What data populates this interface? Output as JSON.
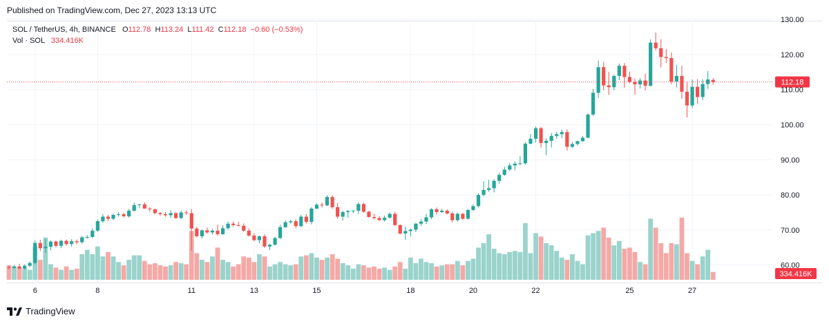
{
  "header": {
    "published": "Published on TradingView.com, Dec 27, 2023 13:13 UTC"
  },
  "legend": {
    "symbol": "SOL / TetherUS, 4h, BINANCE",
    "o_label": "O",
    "o_value": "112.78",
    "h_label": "H",
    "h_value": "113.24",
    "l_label": "L",
    "l_value": "111.42",
    "c_label": "C",
    "c_value": "112.18",
    "change": "−0.60 (−0.53%)",
    "vol_label": "Vol · SOL",
    "vol_value": "334.416K"
  },
  "footer": {
    "brand": "TradingView",
    "logo_icon": "tradingview-logo-icon"
  },
  "colors": {
    "up": "#26a69a",
    "down": "#ef5350",
    "vol_up": "#9ad3cc",
    "vol_down": "#f4a9a7",
    "last_price": "#f23645"
  },
  "chart_data": {
    "type": "candlestick",
    "interval": "4h",
    "price_axis": {
      "ticks": [
        "60.00",
        "70.00",
        "80.00",
        "90.00",
        "100.00",
        "110.00",
        "120.00",
        "130.00"
      ],
      "range": [
        56,
        132
      ]
    },
    "x_axis": {
      "ticks": [
        {
          "label": "6",
          "index": 5
        },
        {
          "label": "8",
          "index": 17
        },
        {
          "label": "11",
          "index": 35
        },
        {
          "label": "13",
          "index": 47
        },
        {
          "label": "15",
          "index": 59
        },
        {
          "label": "18",
          "index": 77
        },
        {
          "label": "20",
          "index": 89
        },
        {
          "label": "22",
          "index": 101
        },
        {
          "label": "25",
          "index": 119
        },
        {
          "label": "27",
          "index": 131
        }
      ]
    },
    "last_price_label": "112.18",
    "last_volume_label": "334.416K",
    "last_price": 112.18,
    "grid": true,
    "candles": [
      [
        59.4,
        59.9,
        58.8,
        59.2,
        13
      ],
      [
        59.2,
        60.0,
        58.9,
        59.6,
        12
      ],
      [
        59.6,
        60.4,
        59.0,
        59.0,
        11
      ],
      [
        59.0,
        60.2,
        58.7,
        59.8,
        10
      ],
      [
        59.8,
        61.0,
        59.4,
        60.6,
        9
      ],
      [
        60.6,
        67.0,
        60.2,
        66.3,
        30
      ],
      [
        66.3,
        67.2,
        64.0,
        64.8,
        18
      ],
      [
        64.8,
        67.5,
        63.5,
        65.2,
        38
      ],
      [
        65.2,
        67.0,
        64.2,
        66.7,
        14
      ],
      [
        66.7,
        67.0,
        65.0,
        65.5,
        11
      ],
      [
        65.5,
        67.2,
        64.8,
        66.9,
        9
      ],
      [
        66.9,
        67.3,
        65.5,
        66.0,
        12
      ],
      [
        66.0,
        67.4,
        65.3,
        66.8,
        9
      ],
      [
        66.8,
        67.3,
        65.9,
        66.5,
        10
      ],
      [
        66.5,
        68.3,
        66.1,
        67.9,
        23
      ],
      [
        67.9,
        68.5,
        67.5,
        68.0,
        27
      ],
      [
        68.0,
        70.5,
        67.7,
        69.8,
        23
      ],
      [
        69.8,
        73.0,
        69.5,
        72.5,
        30
      ],
      [
        72.5,
        74.5,
        72.0,
        73.8,
        21
      ],
      [
        73.8,
        74.3,
        72.5,
        73.2,
        25
      ],
      [
        73.2,
        74.6,
        72.8,
        74.3,
        21
      ],
      [
        74.3,
        75.1,
        73.8,
        74.5,
        16
      ],
      [
        74.5,
        74.9,
        73.6,
        73.9,
        13
      ],
      [
        73.9,
        76.0,
        73.5,
        75.5,
        18
      ],
      [
        75.5,
        77.8,
        75.2,
        77.1,
        22
      ],
      [
        77.1,
        77.4,
        76.2,
        77.3,
        22
      ],
      [
        77.3,
        77.9,
        76.1,
        76.1,
        17
      ],
      [
        76.1,
        76.5,
        75.2,
        75.9,
        14
      ],
      [
        75.9,
        76.1,
        74.5,
        74.8,
        15
      ],
      [
        74.8,
        75.2,
        74.0,
        74.5,
        13
      ],
      [
        74.5,
        75.1,
        73.8,
        74.2,
        12
      ],
      [
        74.2,
        75.6,
        73.4,
        74.8,
        13
      ],
      [
        74.8,
        75.0,
        73.2,
        73.4,
        16
      ],
      [
        73.4,
        75.5,
        73.1,
        75.0,
        15
      ],
      [
        75.0,
        75.6,
        74.3,
        74.8,
        14
      ],
      [
        74.8,
        76.0,
        64.0,
        70.4,
        44
      ],
      [
        70.4,
        70.9,
        67.9,
        68.2,
        24
      ],
      [
        68.2,
        70.1,
        67.6,
        69.9,
        18
      ],
      [
        69.9,
        70.7,
        68.9,
        69.3,
        16
      ],
      [
        69.3,
        70.3,
        68.7,
        69.8,
        21
      ],
      [
        69.8,
        71.5,
        68.3,
        68.8,
        29
      ],
      [
        68.8,
        71.3,
        68.6,
        70.5,
        18
      ],
      [
        70.5,
        72.4,
        70.1,
        71.8,
        16
      ],
      [
        71.8,
        72.4,
        71.0,
        71.4,
        12
      ],
      [
        71.4,
        72.3,
        71.0,
        71.2,
        14
      ],
      [
        71.2,
        71.9,
        69.5,
        69.8,
        21
      ],
      [
        69.8,
        70.5,
        68.1,
        68.4,
        20
      ],
      [
        68.4,
        69.1,
        66.8,
        67.1,
        16
      ],
      [
        67.1,
        68.4,
        66.2,
        68.2,
        23
      ],
      [
        68.2,
        68.8,
        64.9,
        65.3,
        21
      ],
      [
        65.3,
        66.1,
        64.3,
        65.8,
        12
      ],
      [
        65.8,
        68.1,
        65.5,
        67.7,
        14
      ],
      [
        67.7,
        71.5,
        67.5,
        70.8,
        16
      ],
      [
        70.8,
        72.8,
        70.6,
        72.2,
        14
      ],
      [
        72.2,
        72.9,
        71.8,
        72.5,
        13
      ],
      [
        72.5,
        73.0,
        70.5,
        71.1,
        14
      ],
      [
        71.1,
        74.3,
        70.8,
        73.8,
        21
      ],
      [
        73.8,
        74.6,
        71.8,
        72.3,
        22
      ],
      [
        72.3,
        76.5,
        71.6,
        76.1,
        24
      ],
      [
        76.1,
        77.6,
        75.9,
        77.2,
        20
      ],
      [
        77.2,
        77.9,
        76.4,
        77.0,
        18
      ],
      [
        77.0,
        79.9,
        76.8,
        79.4,
        20
      ],
      [
        79.4,
        79.9,
        76.0,
        76.5,
        23
      ],
      [
        76.5,
        77.7,
        73.2,
        73.8,
        19
      ],
      [
        73.8,
        75.5,
        72.7,
        75.1,
        15
      ],
      [
        75.1,
        75.7,
        73.5,
        75.4,
        13
      ],
      [
        75.4,
        75.6,
        74.8,
        75.5,
        10
      ],
      [
        75.5,
        77.9,
        74.6,
        77.4,
        14
      ],
      [
        77.4,
        77.7,
        74.9,
        75.2,
        13
      ],
      [
        75.2,
        75.5,
        73.5,
        73.7,
        11
      ],
      [
        73.7,
        74.6,
        73.0,
        73.4,
        12
      ],
      [
        73.4,
        74.0,
        72.6,
        72.8,
        10
      ],
      [
        72.8,
        74.1,
        72.4,
        73.5,
        11
      ],
      [
        73.5,
        75.0,
        73.3,
        74.6,
        9
      ],
      [
        74.6,
        75.2,
        71.1,
        71.4,
        12
      ],
      [
        71.4,
        71.6,
        68.7,
        69.0,
        16
      ],
      [
        69.0,
        71.0,
        67.2,
        69.7,
        10
      ],
      [
        69.7,
        70.4,
        68.2,
        70.1,
        20
      ],
      [
        70.1,
        72.0,
        69.4,
        71.8,
        15
      ],
      [
        71.8,
        73.1,
        71.2,
        72.4,
        19
      ],
      [
        72.4,
        74.6,
        71.7,
        73.6,
        16
      ],
      [
        73.6,
        76.2,
        73.1,
        75.9,
        15
      ],
      [
        75.9,
        76.4,
        74.4,
        75.1,
        12
      ],
      [
        75.1,
        76.0,
        74.9,
        75.5,
        13
      ],
      [
        75.5,
        75.9,
        74.4,
        74.7,
        14
      ],
      [
        74.7,
        75.3,
        72.2,
        72.8,
        14
      ],
      [
        72.8,
        75.0,
        72.4,
        74.6,
        17
      ],
      [
        74.6,
        74.9,
        72.9,
        73.2,
        13
      ],
      [
        73.2,
        76.0,
        73.0,
        75.7,
        17
      ],
      [
        75.7,
        77.3,
        75.4,
        76.8,
        19
      ],
      [
        76.8,
        80.5,
        76.4,
        80.0,
        29
      ],
      [
        80.0,
        83.8,
        79.6,
        81.4,
        33
      ],
      [
        81.4,
        84.3,
        80.9,
        81.9,
        41
      ],
      [
        81.9,
        84.5,
        80.7,
        84.0,
        28
      ],
      [
        84.0,
        86.3,
        83.2,
        85.7,
        24
      ],
      [
        85.7,
        88.0,
        85.4,
        87.2,
        23
      ],
      [
        87.2,
        89.1,
        86.8,
        88.4,
        25
      ],
      [
        88.4,
        89.5,
        87.0,
        88.9,
        26
      ],
      [
        88.9,
        91.0,
        88.4,
        89.0,
        25
      ],
      [
        89.0,
        95.0,
        88.6,
        94.6,
        51
      ],
      [
        94.6,
        97.3,
        94.4,
        96.0,
        24
      ],
      [
        96.0,
        99.5,
        94.9,
        99.0,
        42
      ],
      [
        99.0,
        99.4,
        93.5,
        94.8,
        39
      ],
      [
        94.8,
        96.2,
        91.3,
        95.4,
        33
      ],
      [
        95.4,
        97.6,
        93.5,
        96.8,
        31
      ],
      [
        96.8,
        98.0,
        96.0,
        97.3,
        26
      ],
      [
        97.3,
        98.6,
        96.2,
        97.9,
        20
      ],
      [
        97.9,
        98.7,
        92.6,
        93.7,
        18
      ],
      [
        93.7,
        95.1,
        93.4,
        94.5,
        23
      ],
      [
        94.5,
        95.5,
        94.1,
        95.3,
        17
      ],
      [
        95.3,
        96.8,
        95.1,
        96.3,
        14
      ],
      [
        96.3,
        103.2,
        96.1,
        102.9,
        40
      ],
      [
        102.9,
        110.2,
        102.5,
        109.1,
        42
      ],
      [
        109.1,
        118.3,
        107.6,
        116.4,
        44
      ],
      [
        116.4,
        117.9,
        109.8,
        111.2,
        47
      ],
      [
        111.2,
        115.1,
        108.5,
        110.7,
        38
      ],
      [
        110.7,
        114.3,
        109.8,
        113.9,
        31
      ],
      [
        113.9,
        117.4,
        112.7,
        116.8,
        35
      ],
      [
        116.8,
        117.6,
        110.5,
        113.6,
        28
      ],
      [
        113.6,
        115.1,
        111.8,
        112.2,
        29
      ],
      [
        112.2,
        113.2,
        108.6,
        111.5,
        25
      ],
      [
        111.5,
        113.3,
        110.3,
        112.6,
        16
      ],
      [
        112.6,
        114.6,
        109.8,
        111.1,
        14
      ],
      [
        111.1,
        124.3,
        110.9,
        123.4,
        55
      ],
      [
        123.4,
        126.3,
        121.2,
        121.8,
        47
      ],
      [
        121.8,
        124.4,
        116.3,
        119.3,
        33
      ],
      [
        119.3,
        121.6,
        117.6,
        119.0,
        24
      ],
      [
        119.0,
        120.6,
        111.5,
        112.3,
        33
      ],
      [
        112.3,
        117.1,
        110.6,
        113.9,
        32
      ],
      [
        113.9,
        116.8,
        107.4,
        109.4,
        56
      ],
      [
        109.4,
        112.1,
        102.1,
        105.5,
        24
      ],
      [
        105.5,
        112.9,
        104.7,
        110.8,
        17
      ],
      [
        110.8,
        113.0,
        106.0,
        107.9,
        14
      ],
      [
        107.9,
        112.9,
        107.0,
        111.6,
        21
      ],
      [
        111.6,
        115.3,
        110.2,
        112.9,
        27
      ],
      [
        112.78,
        113.24,
        111.42,
        112.18,
        7
      ]
    ]
  }
}
